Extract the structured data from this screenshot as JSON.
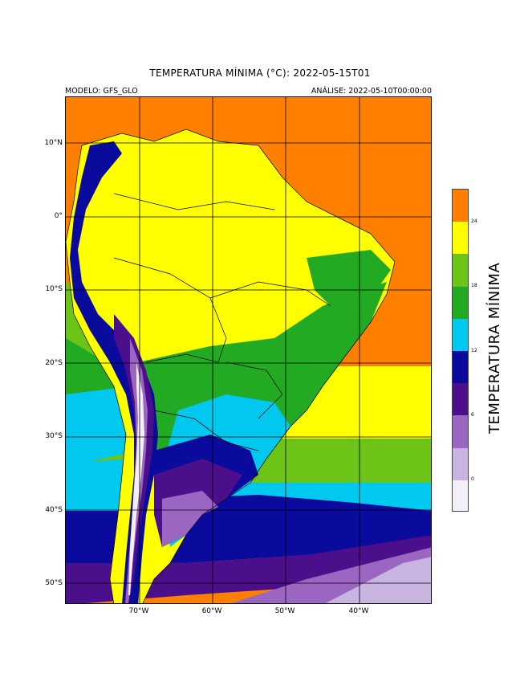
{
  "title": "TEMPERATURA MÍNIMA (°C): 2022-05-15T01",
  "model_label": "MODELO: GFS_GLO",
  "analysis_label": "ANÁLISE: 2022-05-10T00:00:00",
  "lat_labels": [
    "10°N",
    "0°",
    "10°S",
    "20°S",
    "30°S",
    "40°S",
    "50°S"
  ],
  "lon_labels": [
    "70°W",
    "60°W",
    "50°W",
    "40°W"
  ],
  "colorbar": {
    "label": "TEMPERATURA MÍNIMA",
    "tick_labels": [
      "24",
      "18",
      "12",
      "6",
      "0"
    ],
    "colors": [
      "#ff7f00",
      "#ffff00",
      "#6cc417",
      "#22aa22",
      "#00c8ef",
      "#0a0a9c",
      "#4b0f8c",
      "#9a66c2",
      "#c9b3e0",
      "#f3eef8"
    ]
  },
  "map_colors": {
    "hot": "#ff7f00",
    "warm": "#ffff00",
    "light_green": "#6cc417",
    "green": "#22aa22",
    "cyan": "#00c8ef",
    "navy": "#0a0a9c",
    "purple": "#4b0f8c",
    "violet": "#9a66c2",
    "lavender": "#c9b3e0",
    "white": "#f3eef8"
  }
}
